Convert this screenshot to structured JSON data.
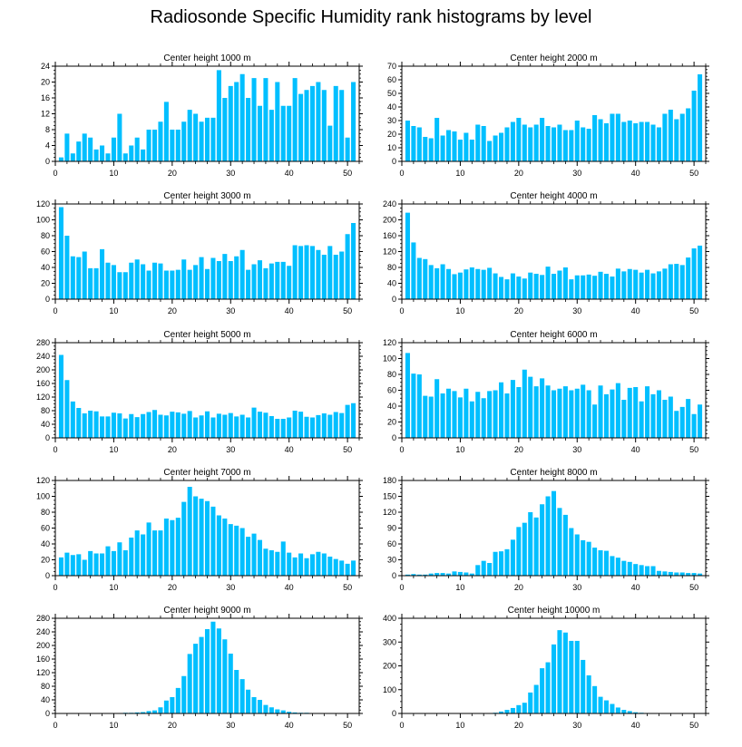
{
  "title": "Radiosonde Specific Humidity rank histograms by level",
  "bar_color": "#00bfff",
  "chart_data": [
    {
      "type": "bar",
      "title": "Center height 1000 m",
      "ylim": [
        0,
        24
      ],
      "yticks": [
        0,
        4,
        8,
        12,
        16,
        20,
        24
      ],
      "xticks": [
        0,
        10,
        20,
        30,
        40,
        50
      ],
      "values": [
        1,
        7,
        2,
        5,
        7,
        6,
        3,
        4,
        2,
        6,
        12,
        2,
        4,
        6,
        3,
        8,
        8,
        10,
        15,
        8,
        8,
        10,
        13,
        12,
        10,
        11,
        11,
        23,
        16,
        19,
        20,
        22,
        16,
        21,
        14,
        21,
        13,
        20,
        14,
        14,
        21,
        17,
        18,
        19,
        20,
        18,
        9,
        19,
        18,
        6,
        20
      ]
    },
    {
      "type": "bar",
      "title": "Center height 2000 m",
      "ylim": [
        0,
        70
      ],
      "yticks": [
        0,
        10,
        20,
        30,
        40,
        50,
        60,
        70
      ],
      "xticks": [
        0,
        10,
        20,
        30,
        40,
        50
      ],
      "values": [
        30,
        26,
        25,
        18,
        17,
        32,
        19,
        23,
        22,
        16,
        21,
        16,
        27,
        26,
        15,
        19,
        21,
        25,
        29,
        32,
        27,
        25,
        27,
        32,
        26,
        25,
        27,
        23,
        23,
        30,
        25,
        24,
        34,
        31,
        28,
        35,
        35,
        29,
        30,
        28,
        29,
        29,
        27,
        25,
        35,
        38,
        31,
        35,
        39,
        52,
        64
      ]
    },
    {
      "type": "bar",
      "title": "Center height 3000 m",
      "ylim": [
        0,
        120
      ],
      "yticks": [
        0,
        20,
        40,
        60,
        80,
        100,
        120
      ],
      "xticks": [
        0,
        10,
        20,
        30,
        40,
        50
      ],
      "values": [
        116,
        80,
        54,
        53,
        60,
        39,
        39,
        63,
        46,
        43,
        34,
        34,
        46,
        50,
        44,
        36,
        46,
        45,
        36,
        36,
        37,
        50,
        37,
        43,
        53,
        38,
        52,
        48,
        57,
        48,
        54,
        62,
        37,
        44,
        49,
        39,
        45,
        47,
        47,
        42,
        68,
        67,
        68,
        67,
        62,
        56,
        67,
        56,
        60,
        82,
        96
      ]
    },
    {
      "type": "bar",
      "title": "Center height 4000 m",
      "ylim": [
        0,
        240
      ],
      "yticks": [
        0,
        40,
        80,
        120,
        160,
        200,
        240
      ],
      "xticks": [
        0,
        10,
        20,
        30,
        40,
        50
      ],
      "values": [
        218,
        143,
        104,
        101,
        86,
        78,
        88,
        76,
        63,
        67,
        75,
        80,
        76,
        74,
        79,
        65,
        56,
        50,
        65,
        57,
        52,
        67,
        64,
        61,
        82,
        64,
        72,
        80,
        50,
        60,
        60,
        62,
        59,
        69,
        64,
        57,
        77,
        70,
        76,
        74,
        67,
        74,
        65,
        70,
        77,
        88,
        89,
        86,
        105,
        128,
        135
      ]
    },
    {
      "type": "bar",
      "title": "Center height 5000 m",
      "ylim": [
        0,
        280
      ],
      "yticks": [
        0,
        40,
        80,
        120,
        160,
        200,
        240,
        280
      ],
      "xticks": [
        0,
        10,
        20,
        30,
        40,
        50
      ],
      "values": [
        244,
        170,
        107,
        88,
        72,
        80,
        78,
        63,
        63,
        74,
        72,
        57,
        70,
        61,
        70,
        76,
        82,
        68,
        66,
        77,
        75,
        71,
        79,
        60,
        66,
        78,
        60,
        71,
        68,
        73,
        63,
        68,
        60,
        89,
        77,
        74,
        64,
        56,
        56,
        60,
        80,
        77,
        62,
        60,
        67,
        72,
        68,
        76,
        73,
        97,
        102
      ]
    },
    {
      "type": "bar",
      "title": "Center height 6000 m",
      "ylim": [
        0,
        120
      ],
      "yticks": [
        0,
        20,
        40,
        60,
        80,
        100,
        120
      ],
      "xticks": [
        0,
        10,
        20,
        30,
        40,
        50
      ],
      "values": [
        107,
        81,
        80,
        53,
        52,
        74,
        56,
        62,
        59,
        51,
        62,
        46,
        58,
        50,
        59,
        60,
        70,
        56,
        73,
        64,
        86,
        77,
        65,
        75,
        66,
        60,
        62,
        65,
        60,
        62,
        67,
        60,
        42,
        66,
        55,
        61,
        69,
        48,
        63,
        64,
        46,
        65,
        55,
        60,
        48,
        52,
        34,
        39,
        49,
        30,
        42
      ]
    },
    {
      "type": "bar",
      "title": "Center height 7000 m",
      "ylim": [
        0,
        120
      ],
      "yticks": [
        0,
        20,
        40,
        60,
        80,
        100,
        120
      ],
      "xticks": [
        0,
        10,
        20,
        30,
        40,
        50
      ],
      "values": [
        23,
        29,
        26,
        27,
        20,
        31,
        28,
        28,
        37,
        31,
        42,
        32,
        48,
        57,
        52,
        67,
        57,
        57,
        72,
        70,
        73,
        93,
        112,
        100,
        97,
        94,
        87,
        76,
        72,
        65,
        63,
        60,
        49,
        53,
        45,
        34,
        32,
        30,
        43,
        29,
        23,
        28,
        22,
        27,
        30,
        28,
        24,
        21,
        19,
        15,
        19
      ]
    },
    {
      "type": "bar",
      "title": "Center height 8000 m",
      "ylim": [
        0,
        180
      ],
      "yticks": [
        0,
        30,
        60,
        90,
        120,
        150,
        180
      ],
      "xticks": [
        0,
        10,
        20,
        30,
        40,
        50
      ],
      "values": [
        2,
        3,
        2,
        2,
        4,
        5,
        5,
        4,
        8,
        7,
        6,
        4,
        20,
        28,
        24,
        45,
        46,
        50,
        68,
        92,
        100,
        120,
        110,
        135,
        150,
        160,
        128,
        115,
        90,
        78,
        67,
        64,
        53,
        48,
        47,
        37,
        34,
        28,
        26,
        22,
        20,
        18,
        18,
        9,
        8,
        7,
        6,
        6,
        5,
        5,
        4
      ]
    },
    {
      "type": "bar",
      "title": "Center height 9000 m",
      "ylim": [
        0,
        280
      ],
      "yticks": [
        0,
        40,
        80,
        120,
        160,
        200,
        240,
        280
      ],
      "xticks": [
        0,
        10,
        20,
        30,
        40,
        50
      ],
      "values": [
        0,
        0,
        0,
        0,
        0,
        0,
        0,
        0,
        0,
        0,
        1,
        2,
        2,
        3,
        4,
        7,
        9,
        18,
        38,
        48,
        75,
        110,
        175,
        205,
        225,
        248,
        270,
        250,
        218,
        176,
        128,
        101,
        70,
        48,
        40,
        25,
        18,
        12,
        9,
        5,
        3,
        2,
        2,
        1,
        0,
        0,
        0,
        0,
        0,
        0,
        0
      ]
    },
    {
      "type": "bar",
      "title": "Center height 10000 m",
      "ylim": [
        0,
        400
      ],
      "yticks": [
        0,
        100,
        200,
        300,
        400
      ],
      "xticks": [
        0,
        10,
        20,
        30,
        40,
        50
      ],
      "values": [
        0,
        0,
        0,
        0,
        0,
        0,
        0,
        0,
        0,
        0,
        0,
        0,
        0,
        1,
        1,
        3,
        8,
        15,
        23,
        35,
        45,
        88,
        120,
        190,
        215,
        290,
        350,
        340,
        305,
        305,
        225,
        160,
        115,
        70,
        55,
        40,
        25,
        15,
        10,
        5,
        3,
        2,
        1,
        1,
        0,
        0,
        0,
        0,
        0,
        0,
        0
      ]
    }
  ]
}
